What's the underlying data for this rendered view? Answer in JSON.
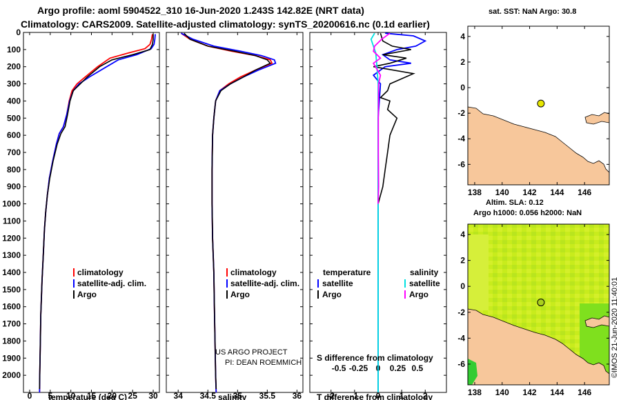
{
  "title_line1": "Argo profile: aoml 5904522_310 16-Jun-2020 1.243S 142.82E (NRT data)",
  "title_line2": "Climatology: CARS2009. Satellite-adjusted climatology: synTS_20200616.nc (0.1d earlier)",
  "colors": {
    "climatology": "#ff0000",
    "satellite": "#0000ff",
    "argo": "#000000",
    "sal_satellite": "#00e0e0",
    "sal_argo": "#ff00ff",
    "land": "#f7c79b",
    "marker": "#e6e600"
  },
  "depth_ticks": [
    "0",
    "100",
    "200",
    "300",
    "400",
    "500",
    "600",
    "700",
    "800",
    "900",
    "1000",
    "1100",
    "1200",
    "1300",
    "1400",
    "1500",
    "1600",
    "1700",
    "1800",
    "1900",
    "2000"
  ],
  "chart_data": [
    {
      "type": "line",
      "id": "temperature",
      "xlabel": "temperature (deg C)",
      "xlim": [
        -1.5,
        31.5
      ],
      "ylim": [
        2100,
        0
      ],
      "xticks": [
        "0",
        "5",
        "10",
        "15",
        "20",
        "25",
        "30"
      ],
      "xtick_values": [
        0,
        5,
        10,
        15,
        20,
        25,
        30
      ],
      "legend": [
        "climatology",
        "satellite-adj. clim.",
        "Argo"
      ],
      "series": [
        {
          "name": "climatology",
          "color": "#ff0000",
          "points": [
            [
              29.8,
              10
            ],
            [
              29.6,
              40
            ],
            [
              29.2,
              70
            ],
            [
              28,
              95
            ],
            [
              24,
              120
            ],
            [
              19.5,
              150
            ],
            [
              16.5,
              200
            ],
            [
              13.5,
              260
            ],
            [
              11.5,
              300
            ],
            [
              10.3,
              340
            ],
            [
              9.6,
              400
            ],
            [
              9,
              480
            ],
            [
              8.2,
              550
            ],
            [
              7.2,
              590
            ],
            [
              6.5,
              650
            ],
            [
              5.6,
              750
            ],
            [
              4.8,
              850
            ],
            [
              4.3,
              950
            ],
            [
              3.9,
              1050
            ],
            [
              3.6,
              1150
            ],
            [
              3.4,
              1250
            ],
            [
              3.2,
              1350
            ],
            [
              3,
              1450
            ],
            [
              2.85,
              1550
            ],
            [
              2.7,
              1650
            ],
            [
              2.6,
              1800
            ],
            [
              2.45,
              2000
            ],
            [
              2.4,
              2100
            ]
          ]
        },
        {
          "name": "satellite-adj. clim.",
          "color": "#0000ff",
          "points": [
            [
              30.5,
              10
            ],
            [
              30.4,
              40
            ],
            [
              30.2,
              70
            ],
            [
              29.5,
              95
            ],
            [
              26,
              130
            ],
            [
              21.5,
              160
            ],
            [
              18,
              210
            ],
            [
              14.5,
              260
            ],
            [
              12,
              300
            ],
            [
              10.6,
              340
            ],
            [
              9.7,
              400
            ],
            [
              9,
              480
            ],
            [
              8.2,
              550
            ],
            [
              7.2,
              590
            ],
            [
              6.5,
              650
            ],
            [
              5.6,
              750
            ],
            [
              4.8,
              850
            ],
            [
              4.3,
              950
            ],
            [
              3.9,
              1050
            ],
            [
              3.6,
              1150
            ],
            [
              3.4,
              1250
            ],
            [
              3.2,
              1350
            ],
            [
              3,
              1450
            ],
            [
              2.85,
              1550
            ],
            [
              2.7,
              1650
            ],
            [
              2.6,
              1800
            ],
            [
              2.45,
              2000
            ],
            [
              2.4,
              2100
            ]
          ]
        },
        {
          "name": "Argo",
          "color": "#000000",
          "points": [
            [
              30,
              10
            ],
            [
              30,
              40
            ],
            [
              29.8,
              70
            ],
            [
              29.2,
              100
            ],
            [
              25,
              130
            ],
            [
              20,
              160
            ],
            [
              17,
              200
            ],
            [
              14,
              260
            ],
            [
              12.3,
              300
            ],
            [
              10.6,
              340
            ],
            [
              9.8,
              400
            ],
            [
              9.2,
              480
            ],
            [
              8.6,
              550
            ],
            [
              7.6,
              590
            ],
            [
              6.7,
              650
            ],
            [
              5.7,
              750
            ],
            [
              4.9,
              850
            ],
            [
              4.3,
              950
            ],
            [
              3.9,
              1050
            ],
            [
              3.6,
              1150
            ],
            [
              3.4,
              1250
            ],
            [
              3.2,
              1350
            ],
            [
              3,
              1450
            ],
            [
              2.85,
              1550
            ],
            [
              2.7,
              1650
            ],
            [
              2.6,
              1800
            ],
            [
              2.45,
              2000
            ],
            [
              2.4,
              2080
            ]
          ]
        }
      ]
    },
    {
      "type": "line",
      "id": "salinity",
      "xlabel": "salinity",
      "xlim": [
        33.8,
        36.1
      ],
      "ylim": [
        2100,
        0
      ],
      "xticks": [
        "34",
        "34.5",
        "35",
        "35.5",
        "36"
      ],
      "xtick_values": [
        34,
        34.5,
        35,
        35.5,
        36
      ],
      "legend": [
        "climatology",
        "satellite-adj. clim.",
        "Argo"
      ],
      "footnote": [
        "US ARGO PROJECT",
        "PI: DEAN ROEMMICH"
      ],
      "series": [
        {
          "name": "climatology",
          "color": "#ff0000",
          "points": [
            [
              34.05,
              5
            ],
            [
              34.2,
              40
            ],
            [
              34.5,
              80
            ],
            [
              34.9,
              110
            ],
            [
              35.3,
              135
            ],
            [
              35.55,
              160
            ],
            [
              35.58,
              180
            ],
            [
              35.3,
              220
            ],
            [
              35.05,
              260
            ],
            [
              34.85,
              300
            ],
            [
              34.7,
              340
            ],
            [
              34.63,
              400
            ],
            [
              34.6,
              500
            ],
            [
              34.58,
              600
            ],
            [
              34.57,
              800
            ],
            [
              34.57,
              1000
            ],
            [
              34.58,
              1200
            ],
            [
              34.6,
              1400
            ],
            [
              34.61,
              1600
            ],
            [
              34.62,
              1800
            ],
            [
              34.63,
              2000
            ],
            [
              34.64,
              2100
            ]
          ]
        },
        {
          "name": "satellite-adj. clim.",
          "color": "#0000ff",
          "points": [
            [
              34.05,
              5
            ],
            [
              34.25,
              40
            ],
            [
              34.6,
              80
            ],
            [
              35.05,
              110
            ],
            [
              35.4,
              135
            ],
            [
              35.62,
              160
            ],
            [
              35.64,
              180
            ],
            [
              35.35,
              220
            ],
            [
              35.1,
              260
            ],
            [
              34.88,
              300
            ],
            [
              34.7,
              340
            ],
            [
              34.63,
              400
            ],
            [
              34.6,
              500
            ],
            [
              34.58,
              600
            ],
            [
              34.57,
              800
            ],
            [
              34.57,
              1000
            ],
            [
              34.58,
              1200
            ],
            [
              34.6,
              1400
            ],
            [
              34.61,
              1600
            ],
            [
              34.62,
              1800
            ],
            [
              34.63,
              2000
            ],
            [
              34.64,
              2100
            ]
          ]
        },
        {
          "name": "Argo",
          "color": "#000000",
          "points": [
            [
              34.1,
              5
            ],
            [
              34.2,
              40
            ],
            [
              34.5,
              80
            ],
            [
              34.95,
              110
            ],
            [
              35.3,
              135
            ],
            [
              35.5,
              160
            ],
            [
              35.55,
              180
            ],
            [
              35.3,
              220
            ],
            [
              35.1,
              260
            ],
            [
              34.88,
              300
            ],
            [
              34.72,
              340
            ],
            [
              34.63,
              400
            ],
            [
              34.6,
              500
            ],
            [
              34.58,
              600
            ],
            [
              34.57,
              800
            ],
            [
              34.57,
              1000
            ],
            [
              34.58,
              1200
            ],
            [
              34.6,
              1400
            ],
            [
              34.61,
              1600
            ],
            [
              34.62,
              1800
            ],
            [
              34.63,
              2000
            ],
            [
              34.64,
              2080
            ]
          ]
        }
      ]
    },
    {
      "type": "line",
      "id": "difference",
      "xlabel": "T difference from climatology",
      "xlabel_top": "S difference from climatology",
      "xlim": [
        -2.9,
        2.9
      ],
      "ylim": [
        2100,
        0
      ],
      "xticks": [
        "-2",
        "-1",
        "0",
        "1",
        "2"
      ],
      "xtick_values": [
        -2,
        -1,
        0,
        1,
        2
      ],
      "sticks": [
        "-0.5",
        "-0.25",
        "0",
        "0.25",
        "0.5"
      ],
      "stick_values": [
        -0.5,
        -0.25,
        0,
        0.25,
        0.5
      ],
      "legend_left_title": "temperature",
      "legend_right_title": "salinity",
      "legend_left": [
        "satellite",
        "Argo"
      ],
      "legend_right": [
        "satellite",
        "Argo"
      ],
      "series": [
        {
          "name": "T satellite",
          "color": "#0000ff",
          "points": [
            [
              0.3,
              5
            ],
            [
              1.5,
              20
            ],
            [
              2,
              50
            ],
            [
              1.6,
              80
            ],
            [
              0.8,
              100
            ],
            [
              0.2,
              130
            ],
            [
              0.5,
              160
            ],
            [
              1.4,
              180
            ],
            [
              0.3,
              200
            ],
            [
              -0.2,
              250
            ],
            [
              0.1,
              300
            ],
            [
              0.05,
              400
            ],
            [
              0,
              500
            ],
            [
              0,
              1000
            ],
            [
              0,
              2100
            ]
          ]
        },
        {
          "name": "T Argo",
          "color": "#000000",
          "points": [
            [
              0.1,
              5
            ],
            [
              0.2,
              50
            ],
            [
              0.6,
              80
            ],
            [
              1.4,
              100
            ],
            [
              0.2,
              130
            ],
            [
              1.2,
              150
            ],
            [
              0.5,
              180
            ],
            [
              -0.2,
              200
            ],
            [
              1.5,
              240
            ],
            [
              0.5,
              300
            ],
            [
              0.4,
              340
            ],
            [
              0.1,
              380
            ],
            [
              0.5,
              400
            ],
            [
              0.4,
              450
            ],
            [
              0.8,
              500
            ],
            [
              0.5,
              600
            ],
            [
              0.4,
              700
            ],
            [
              0.3,
              800
            ],
            [
              0.2,
              900
            ],
            [
              0,
              1000
            ]
          ]
        },
        {
          "name": "S satellite",
          "color": "#00e0e0",
          "points": [
            [
              -0.15,
              5
            ],
            [
              -0.3,
              40
            ],
            [
              -0.2,
              80
            ],
            [
              -0.1,
              120
            ],
            [
              -0.05,
              200
            ],
            [
              0,
              300
            ],
            [
              0,
              600
            ],
            [
              0,
              1000
            ],
            [
              0,
              2100
            ]
          ]
        },
        {
          "name": "S Argo",
          "color": "#ff00ff",
          "points": [
            [
              0.5,
              5
            ],
            [
              0.15,
              40
            ],
            [
              -0.15,
              80
            ],
            [
              -0.2,
              110
            ],
            [
              0.1,
              150
            ],
            [
              -0.2,
              180
            ],
            [
              0.1,
              250
            ],
            [
              0.02,
              300
            ],
            [
              0.01,
              500
            ],
            [
              0.01,
              700
            ],
            [
              0.02,
              900
            ],
            [
              0,
              1000
            ]
          ]
        }
      ]
    }
  ],
  "map_sst": {
    "title": "sat. SST: NaN Argo: 30.8",
    "xticks": [
      "138",
      "140",
      "142",
      "144",
      "146"
    ],
    "xtick_values": [
      138,
      140,
      142,
      144,
      146
    ],
    "yticks": [
      "4",
      "2",
      "0",
      "-2",
      "-4",
      "-6"
    ],
    "ytick_values": [
      4,
      2,
      0,
      -2,
      -4,
      -6
    ],
    "xlim": [
      137.5,
      147.8
    ],
    "ylim": [
      -7.6,
      4.8
    ],
    "argo_position": [
      142.82,
      -1.243
    ]
  },
  "map_sla": {
    "title_line1": "Altim. SLA: 0.12",
    "title_line2": "Argo h1000: 0.056 h2000: NaN",
    "xticks": [
      "138",
      "140",
      "142",
      "144",
      "146"
    ],
    "xtick_values": [
      138,
      140,
      142,
      144,
      146
    ],
    "yticks": [
      "4",
      "2",
      "0",
      "-2",
      "-4",
      "-6"
    ],
    "ytick_values": [
      4,
      2,
      0,
      -2,
      -4,
      -6
    ],
    "xlim": [
      137.5,
      147.8
    ],
    "ylim": [
      -7.6,
      4.8
    ],
    "argo_position": [
      142.82,
      -1.243
    ]
  },
  "watermark": "©IMOS 21-Jun-2020 11:40:01"
}
